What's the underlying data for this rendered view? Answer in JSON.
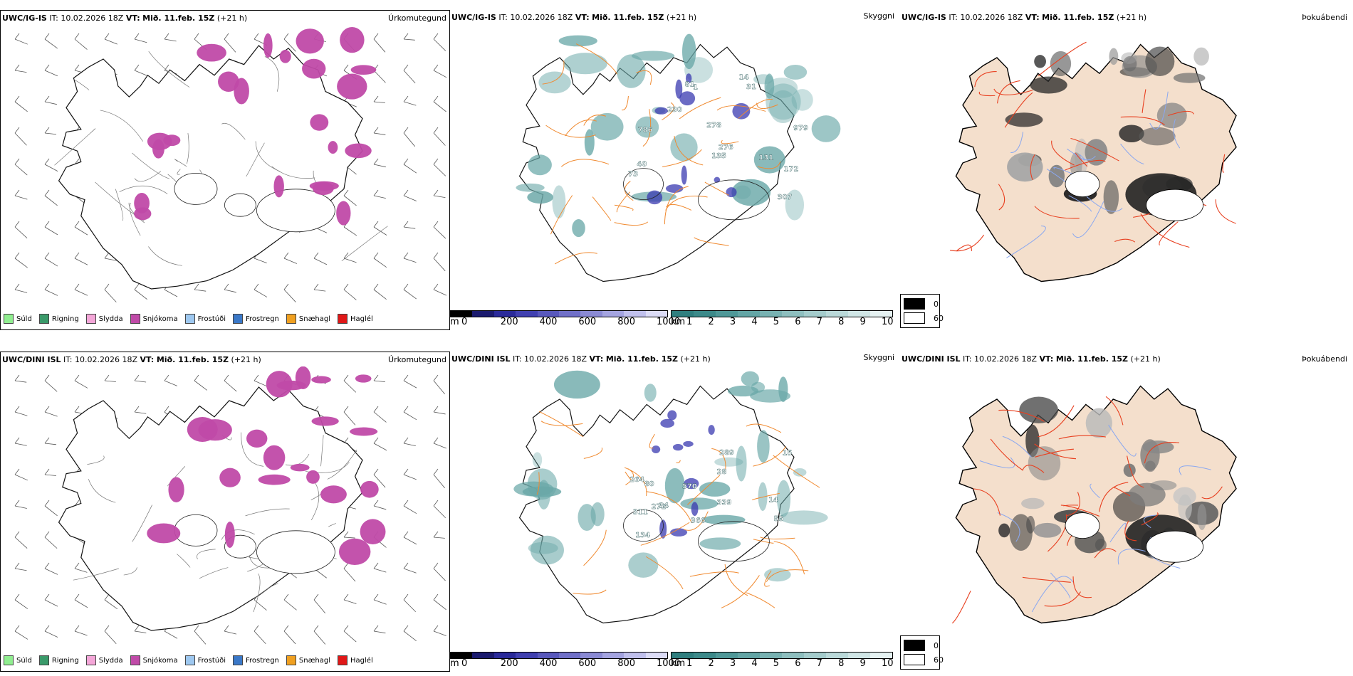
{
  "panels": [
    {
      "id": "top-left",
      "model": "UWC/IG-IS",
      "issue_time": "IT: 10.02.2026 18Z",
      "valid_label": "VT:",
      "valid_time": "Mið. 11.feb. 15Z",
      "lead": "(+21 h)",
      "field": "Úrkomutegund"
    },
    {
      "id": "top-middle",
      "model": "UWC/IG-IS",
      "issue_time": "IT: 10.02.2026 18Z",
      "valid_label": "VT:",
      "valid_time": "Mið. 11.feb. 15Z",
      "lead": "(+21 h)",
      "field": "Skyggni"
    },
    {
      "id": "top-right",
      "model": "UWC/IG-IS",
      "issue_time": "IT: 10.02.2026 18Z",
      "valid_label": "VT:",
      "valid_time": "Mið. 11.feb. 15Z",
      "lead": "(+21 h)",
      "field": "Þokuábendi"
    },
    {
      "id": "bottom-left",
      "model": "UWC/DINI ISL",
      "issue_time": "IT: 10.02.2026 18Z",
      "valid_label": "VT:",
      "valid_time": "Mið. 11.feb. 15Z",
      "lead": "(+21 h)",
      "field": "Úrkomutegund"
    },
    {
      "id": "bottom-middle",
      "model": "UWC/DINI ISL",
      "issue_time": "IT: 10.02.2026 18Z",
      "valid_label": "VT:",
      "valid_time": "Mið. 11.feb. 15Z",
      "lead": "(+21 h)",
      "field": "Skyggni"
    },
    {
      "id": "bottom-right",
      "model": "UWC/DINI ISL",
      "issue_time": "IT: 10.02.2026 18Z",
      "valid_label": "VT:",
      "valid_time": "Mið. 11.feb. 15Z",
      "lead": "(+21 h)",
      "field": "Þokuábendi"
    }
  ],
  "precip_legend": [
    {
      "label": "Súld",
      "color": "#90ee90"
    },
    {
      "label": "Rigning",
      "color": "#3a9a6a"
    },
    {
      "label": "Slydda",
      "color": "#f4a6d8"
    },
    {
      "label": "Snjókoma",
      "color": "#c04aa8"
    },
    {
      "label": "Frostúði",
      "color": "#9ec8f0"
    },
    {
      "label": "Frostregn",
      "color": "#3a78c8"
    },
    {
      "label": "Snæhagl",
      "color": "#f0a020"
    },
    {
      "label": "Haglél",
      "color": "#e01818"
    }
  ],
  "height_bar": {
    "unit": "m",
    "ticks": [
      "0",
      "200",
      "400",
      "600",
      "800",
      "1000"
    ],
    "colors": [
      "#000000",
      "#1a1a6e",
      "#2a2a9a",
      "#4040b0",
      "#5858bc",
      "#7070c8",
      "#8a8ad4",
      "#a4a4e0",
      "#c0c0ec",
      "#dcdcf6"
    ]
  },
  "vis_bar": {
    "unit": "km",
    "ticks": [
      "1",
      "2",
      "3",
      "4",
      "5",
      "6",
      "7",
      "8",
      "9",
      "10"
    ],
    "colors": [
      "#2f7f7f",
      "#3c8a8a",
      "#4f9898",
      "#63a5a5",
      "#78b2b2",
      "#8ebfbf",
      "#a4cccc",
      "#bad9d9",
      "#d0e6e6",
      "#e6f2f2"
    ]
  },
  "fog_legend": [
    {
      "label": "0",
      "color": "#000000"
    },
    {
      "label": "60",
      "color": "#ffffff"
    }
  ],
  "vis_labels_top": [
    "40",
    "230",
    "172",
    "307",
    "276",
    "979",
    "135",
    "278",
    "786",
    "81",
    "1",
    "31",
    "131",
    "14",
    "73"
  ],
  "vis_labels_bottom": [
    "80",
    "264",
    "55",
    "366",
    "570",
    "28",
    "311",
    "272",
    "289",
    "339",
    "15",
    "34",
    "134",
    "14"
  ],
  "colors": {
    "snow": "#c04aa8",
    "teal_fill": "#6aa8a8",
    "road_orange": "#f08a30",
    "road_red": "#e84020",
    "river_blue": "#8aa8f0",
    "land_beige": "#f4dfcc"
  }
}
